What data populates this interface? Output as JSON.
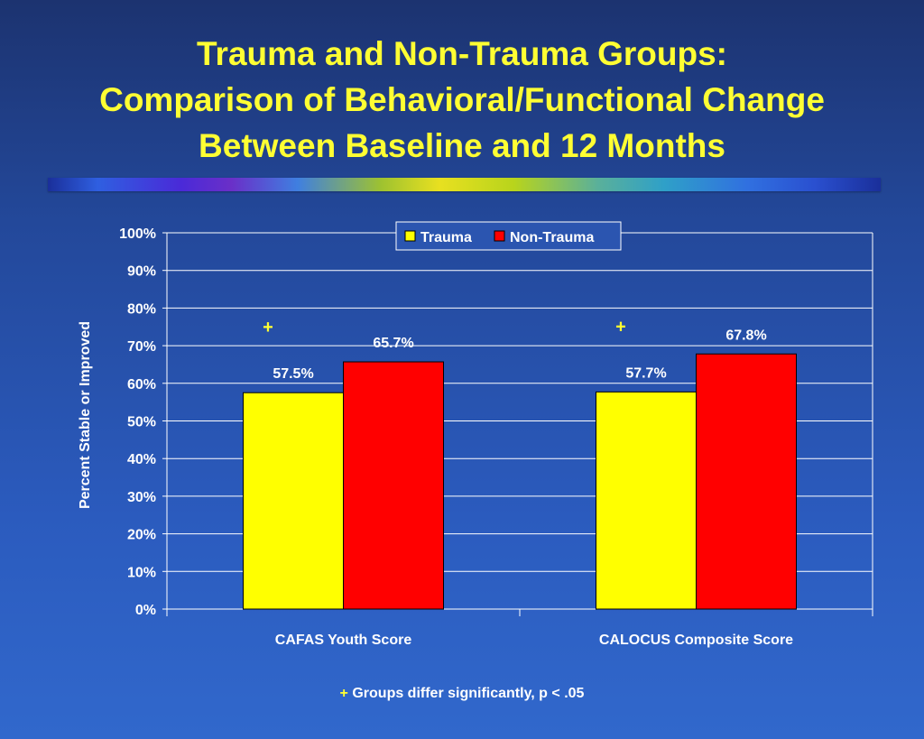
{
  "slide": {
    "title_lines": [
      "Trauma and Non-Trauma Groups:",
      "Comparison of Behavioral/Functional Change",
      "Between Baseline and 12 Months"
    ],
    "footnote_mark": "+",
    "footnote_text": "Groups differ significantly, p < .05"
  },
  "colors": {
    "title": "#ffff33",
    "trauma": "#ffff00",
    "non_trauma": "#ff0000",
    "significance_mark": "#ffff33",
    "text": "#ffffff"
  },
  "chart_data": {
    "type": "bar",
    "title": "",
    "xlabel": "",
    "ylabel": "Percent Stable or Improved",
    "categories": [
      "CAFAS Youth Score",
      "CALOCUS Composite Score"
    ],
    "series": [
      {
        "name": "Trauma",
        "values": [
          57.5,
          57.7
        ],
        "labels": [
          "57.5%",
          "57.7%"
        ]
      },
      {
        "name": "Non-Trauma",
        "values": [
          65.7,
          67.8
        ],
        "labels": [
          "65.7%",
          "67.8%"
        ]
      }
    ],
    "significance_markers": [
      "+",
      "+"
    ],
    "ylim": [
      0,
      100
    ],
    "yticks": [
      0,
      10,
      20,
      30,
      40,
      50,
      60,
      70,
      80,
      90,
      100
    ],
    "ytick_labels": [
      "0%",
      "10%",
      "20%",
      "30%",
      "40%",
      "50%",
      "60%",
      "70%",
      "80%",
      "90%",
      "100%"
    ],
    "grid": true,
    "legend_position": "top-center"
  }
}
